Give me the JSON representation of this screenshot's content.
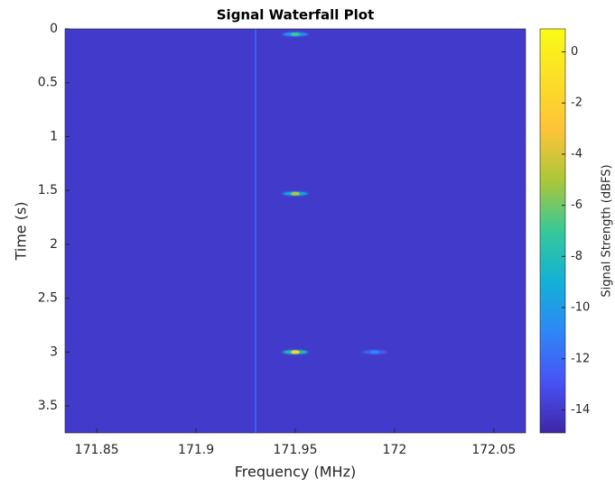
{
  "chart_data": {
    "type": "heatmap",
    "title": "Signal Waterfall Plot",
    "x_label": "Frequency (MHz)",
    "y_label": "Time (s)",
    "colorbar_label": "Signal Strength (dBFS)",
    "colormap": "parula",
    "xlim": [
      171.834,
      172.066
    ],
    "ylim": [
      3.75,
      0
    ],
    "xticks": [
      171.85,
      171.9,
      171.95,
      172,
      172.05
    ],
    "yticks": [
      0,
      0.5,
      1,
      1.5,
      2,
      2.5,
      3,
      3.5
    ],
    "clim": [
      -14.9,
      0.9
    ],
    "cticks": [
      0,
      -2,
      -4,
      -6,
      -8,
      -10,
      -12,
      -14
    ],
    "background": -14,
    "lines": {
      "x": [
        171.93
      ],
      "values": [
        -12
      ]
    },
    "points": {
      "x": [
        171.95,
        171.95,
        171.95,
        171.99
      ],
      "y": [
        0.05,
        1.53,
        3.0,
        3.0
      ],
      "values": [
        -7,
        -5,
        -2,
        -11
      ]
    }
  }
}
